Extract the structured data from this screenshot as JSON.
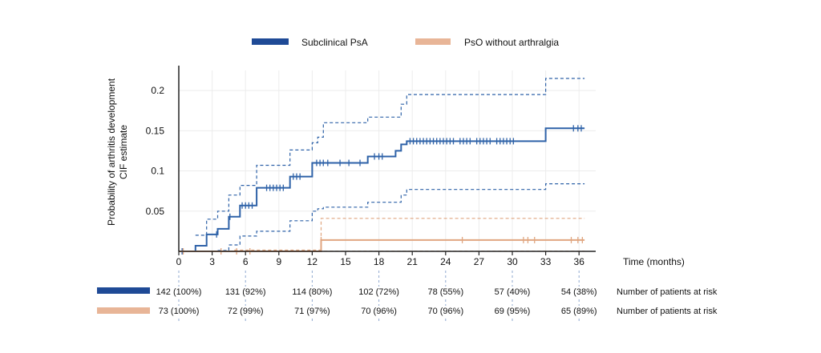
{
  "chart_data": {
    "type": "line",
    "step": true,
    "xlabel": "Time (months)",
    "ylabel": [
      "Probability of arthritis development",
      "CIF estimate"
    ],
    "xlim": [
      0,
      37.5
    ],
    "ylim": [
      0,
      0.225
    ],
    "xticks": [
      0,
      3,
      6,
      9,
      12,
      15,
      18,
      21,
      24,
      27,
      30,
      33,
      36
    ],
    "yticks": [
      0.05,
      0.1,
      0.15,
      0.2
    ],
    "yticklabels": [
      "0.05",
      "0.1",
      "0.15",
      "0.2"
    ],
    "grid": true,
    "legend_position": "top",
    "series": [
      {
        "name": "Subclinical PsA",
        "color": "#2e62a8",
        "legend_color": "#1f4a96",
        "estimate": [
          [
            0,
            0
          ],
          [
            1.5,
            0.007
          ],
          [
            2.5,
            0.021
          ],
          [
            3.5,
            0.028
          ],
          [
            4.5,
            0.043
          ],
          [
            5.5,
            0.057
          ],
          [
            7,
            0.079
          ],
          [
            10,
            0.093
          ],
          [
            12,
            0.11
          ],
          [
            17,
            0.118
          ],
          [
            19.5,
            0.125
          ],
          [
            20,
            0.133
          ],
          [
            20.5,
            0.137
          ],
          [
            33,
            0.153
          ],
          [
            36.5,
            0.153
          ]
        ],
        "upper": [
          [
            1.5,
            0.02
          ],
          [
            2.5,
            0.04
          ],
          [
            3.5,
            0.05
          ],
          [
            4.5,
            0.07
          ],
          [
            5.5,
            0.082
          ],
          [
            7,
            0.107
          ],
          [
            10,
            0.126
          ],
          [
            12,
            0.135
          ],
          [
            12.5,
            0.142
          ],
          [
            13,
            0.16
          ],
          [
            17,
            0.167
          ],
          [
            20,
            0.183
          ],
          [
            20.5,
            0.195
          ],
          [
            33,
            0.215
          ],
          [
            36.5,
            0.215
          ]
        ],
        "lower": [
          [
            3.5,
            0.001
          ],
          [
            4.5,
            0.008
          ],
          [
            5.5,
            0.019
          ],
          [
            7,
            0.025
          ],
          [
            10,
            0.038
          ],
          [
            12,
            0.05
          ],
          [
            12.5,
            0.053
          ],
          [
            13,
            0.055
          ],
          [
            17,
            0.061
          ],
          [
            20,
            0.07
          ],
          [
            20.5,
            0.077
          ],
          [
            33,
            0.084
          ],
          [
            36.5,
            0.084
          ]
        ],
        "censor": [
          0.3,
          3.4,
          4.6,
          5.7,
          6.0,
          6.3,
          6.6,
          7.9,
          8.2,
          8.5,
          8.8,
          9.1,
          9.4,
          10.3,
          10.6,
          10.9,
          12.4,
          12.7,
          13.0,
          13.4,
          14.5,
          15.3,
          16.3,
          17.6,
          18.0,
          18.3,
          20.8,
          21.1,
          21.4,
          21.7,
          22.0,
          22.3,
          22.6,
          22.9,
          23.2,
          23.5,
          23.8,
          24.1,
          24.4,
          24.7,
          25.3,
          25.6,
          25.9,
          26.2,
          26.8,
          27.1,
          27.4,
          27.7,
          28.0,
          28.6,
          28.9,
          29.2,
          29.5,
          29.8,
          30.1,
          35.5,
          35.9,
          36.2
        ]
      },
      {
        "name": "PsO without arthralgia",
        "color": "#e0a680",
        "legend_color": "#e8b597",
        "estimate": [
          [
            0,
            0
          ],
          [
            12.8,
            0
          ],
          [
            12.8,
            0.014
          ],
          [
            36.5,
            0.014
          ]
        ],
        "upper": [
          [
            5,
            0.0015
          ],
          [
            12.8,
            0.0015
          ],
          [
            12.8,
            0.041
          ],
          [
            36.5,
            0.041
          ]
        ],
        "lower": [
          [
            5,
            0.0002
          ],
          [
            36.5,
            0.0002
          ]
        ],
        "censor": [
          0.4,
          3.8,
          5.2,
          6.4,
          12.8,
          25.5,
          31.0,
          31.4,
          32.0,
          35.3,
          35.9,
          36.3
        ]
      }
    ],
    "at_risk": {
      "label": "Number of patients at risk",
      "times": [
        0,
        6,
        12,
        18,
        24,
        30,
        36
      ],
      "rows": [
        {
          "series": "Subclinical PsA",
          "values": [
            "142 (100%)",
            "131 (92%)",
            "114 (80%)",
            "102 (72%)",
            "78 (55%)",
            "57 (40%)",
            "54 (38%)"
          ]
        },
        {
          "series": "PsO without arthralgia",
          "values": [
            "73 (100%)",
            "72 (99%)",
            "71 (97%)",
            "70 (96%)",
            "70 (96%)",
            "69 (95%)",
            "65 (89%)"
          ]
        }
      ]
    }
  }
}
